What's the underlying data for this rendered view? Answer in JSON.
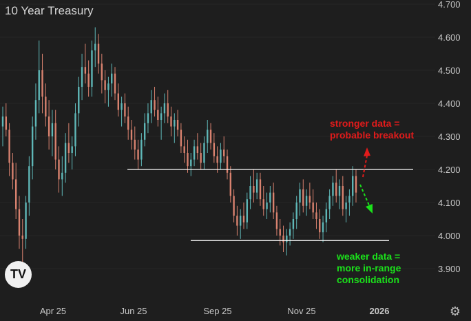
{
  "header": {
    "title": "10 Year Treasury",
    "logo_text": "TV",
    "settings_icon": "gear-icon"
  },
  "annotations": {
    "up_line1": "stronger data =",
    "up_line2": "probable breakout",
    "down_line1": "weaker data =",
    "down_line2": "more in-range",
    "down_line3": "consolidation"
  },
  "colors": {
    "background": "#1e1e1e",
    "up_candle": "#5fb7b7",
    "down_candle": "#d9826f",
    "level_line": "#ffffff",
    "breakout_arrow": "#e11b1b",
    "breakdown_arrow": "#1be11b",
    "axis_text": "#c8c8c8"
  },
  "chart_data": {
    "type": "candlestick",
    "title": "10 Year Treasury",
    "ylim": [
      3.85,
      4.72
    ],
    "y_ticks": [
      "4.700",
      "4.600",
      "4.500",
      "4.400",
      "4.300",
      "4.200",
      "4.100",
      "4.000",
      "3.900"
    ],
    "y_tick_values": [
      4.7,
      4.6,
      4.5,
      4.4,
      4.3,
      4.2,
      4.1,
      4.0,
      3.9
    ],
    "x_ticks": [
      "Apr 25",
      "Jun 25",
      "Sep 25",
      "Nov 25",
      "2026"
    ],
    "resistance_level": 4.2,
    "support_level": 3.985,
    "series": [
      {
        "values": [
          [
            4.33,
            4.39,
            4.27,
            4.36
          ],
          [
            4.36,
            4.4,
            4.3,
            4.32
          ],
          [
            4.32,
            4.34,
            4.18,
            4.22
          ],
          [
            4.22,
            4.25,
            4.14,
            4.17
          ],
          [
            4.17,
            4.22,
            4.05,
            4.08
          ],
          [
            4.08,
            4.12,
            3.96,
            4.0
          ],
          [
            4.0,
            4.05,
            3.92,
            3.99
          ],
          [
            3.99,
            4.12,
            3.96,
            4.1
          ],
          [
            4.1,
            4.24,
            4.06,
            4.21
          ],
          [
            4.21,
            4.36,
            4.17,
            4.33
          ],
          [
            4.33,
            4.46,
            4.29,
            4.41
          ],
          [
            4.41,
            4.59,
            4.37,
            4.5
          ],
          [
            4.5,
            4.55,
            4.37,
            4.42
          ],
          [
            4.42,
            4.46,
            4.33,
            4.36
          ],
          [
            4.36,
            4.41,
            4.26,
            4.3
          ],
          [
            4.3,
            4.38,
            4.24,
            4.34
          ],
          [
            4.34,
            4.38,
            4.2,
            4.23
          ],
          [
            4.23,
            4.27,
            4.13,
            4.17
          ],
          [
            4.17,
            4.24,
            4.12,
            4.19
          ],
          [
            4.19,
            4.31,
            4.16,
            4.28
          ],
          [
            4.28,
            4.34,
            4.22,
            4.25
          ],
          [
            4.25,
            4.3,
            4.2,
            4.27
          ],
          [
            4.27,
            4.4,
            4.24,
            4.37
          ],
          [
            4.37,
            4.48,
            4.33,
            4.45
          ],
          [
            4.45,
            4.55,
            4.41,
            4.51
          ],
          [
            4.51,
            4.58,
            4.46,
            4.49
          ],
          [
            4.49,
            4.53,
            4.42,
            4.45
          ],
          [
            4.45,
            4.59,
            4.42,
            4.56
          ],
          [
            4.56,
            4.63,
            4.51,
            4.58
          ],
          [
            4.58,
            4.61,
            4.49,
            4.52
          ],
          [
            4.52,
            4.55,
            4.43,
            4.47
          ],
          [
            4.47,
            4.5,
            4.4,
            4.44
          ],
          [
            4.44,
            4.48,
            4.39,
            4.46
          ],
          [
            4.46,
            4.52,
            4.42,
            4.49
          ],
          [
            4.49,
            4.51,
            4.41,
            4.43
          ],
          [
            4.43,
            4.46,
            4.36,
            4.38
          ],
          [
            4.38,
            4.42,
            4.33,
            4.4
          ],
          [
            4.4,
            4.43,
            4.34,
            4.36
          ],
          [
            4.36,
            4.39,
            4.29,
            4.32
          ],
          [
            4.32,
            4.35,
            4.26,
            4.29
          ],
          [
            4.29,
            4.33,
            4.23,
            4.26
          ],
          [
            4.26,
            4.29,
            4.2,
            4.23
          ],
          [
            4.23,
            4.31,
            4.21,
            4.29
          ],
          [
            4.29,
            4.37,
            4.27,
            4.34
          ],
          [
            4.34,
            4.4,
            4.31,
            4.37
          ],
          [
            4.37,
            4.44,
            4.34,
            4.41
          ],
          [
            4.41,
            4.45,
            4.36,
            4.38
          ],
          [
            4.38,
            4.42,
            4.33,
            4.35
          ],
          [
            4.35,
            4.39,
            4.29,
            4.37
          ],
          [
            4.37,
            4.43,
            4.34,
            4.4
          ],
          [
            4.4,
            4.44,
            4.34,
            4.36
          ],
          [
            4.36,
            4.39,
            4.3,
            4.33
          ],
          [
            4.33,
            4.37,
            4.28,
            4.35
          ],
          [
            4.35,
            4.38,
            4.3,
            4.32
          ],
          [
            4.32,
            4.34,
            4.25,
            4.27
          ],
          [
            4.27,
            4.3,
            4.22,
            4.25
          ],
          [
            4.25,
            4.29,
            4.19,
            4.21
          ],
          [
            4.21,
            4.25,
            4.18,
            4.23
          ],
          [
            4.23,
            4.29,
            4.21,
            4.27
          ],
          [
            4.27,
            4.31,
            4.23,
            4.25
          ],
          [
            4.25,
            4.28,
            4.2,
            4.22
          ],
          [
            4.22,
            4.3,
            4.2,
            4.28
          ],
          [
            4.28,
            4.35,
            4.25,
            4.32
          ],
          [
            4.32,
            4.34,
            4.26,
            4.28
          ],
          [
            4.28,
            4.31,
            4.22,
            4.24
          ],
          [
            4.24,
            4.27,
            4.19,
            4.22
          ],
          [
            4.22,
            4.28,
            4.2,
            4.26
          ],
          [
            4.26,
            4.3,
            4.22,
            4.24
          ],
          [
            4.24,
            4.26,
            4.17,
            4.19
          ],
          [
            4.19,
            4.21,
            4.1,
            4.12
          ],
          [
            4.12,
            4.14,
            4.04,
            4.06
          ],
          [
            4.06,
            4.09,
            4.0,
            4.03
          ],
          [
            4.03,
            4.08,
            3.99,
            4.06
          ],
          [
            4.06,
            4.1,
            4.02,
            4.04
          ],
          [
            4.04,
            4.13,
            4.02,
            4.11
          ],
          [
            4.11,
            4.18,
            4.08,
            4.15
          ],
          [
            4.15,
            4.2,
            4.1,
            4.13
          ],
          [
            4.13,
            4.19,
            4.11,
            4.17
          ],
          [
            4.17,
            4.19,
            4.09,
            4.11
          ],
          [
            4.11,
            4.15,
            4.06,
            4.08
          ],
          [
            4.08,
            4.13,
            4.05,
            4.1
          ],
          [
            4.1,
            4.15,
            4.07,
            4.13
          ],
          [
            4.13,
            4.16,
            4.05,
            4.07
          ],
          [
            4.07,
            4.09,
            4.0,
            4.02
          ],
          [
            4.02,
            4.05,
            3.97,
            4.0
          ],
          [
            4.0,
            4.03,
            3.95,
            3.98
          ],
          [
            3.98,
            4.02,
            3.94,
            4.0
          ],
          [
            4.0,
            4.04,
            3.97,
            4.02
          ],
          [
            4.02,
            4.07,
            3.99,
            4.05
          ],
          [
            4.05,
            4.12,
            4.02,
            4.1
          ],
          [
            4.1,
            4.16,
            4.06,
            4.14
          ],
          [
            4.14,
            4.17,
            4.07,
            4.09
          ],
          [
            4.09,
            4.14,
            4.06,
            4.12
          ],
          [
            4.12,
            4.16,
            4.08,
            4.1
          ],
          [
            4.1,
            4.14,
            4.05,
            4.07
          ],
          [
            4.07,
            4.1,
            4.02,
            4.05
          ],
          [
            4.05,
            4.08,
            3.99,
            4.01
          ],
          [
            4.01,
            4.06,
            3.98,
            4.04
          ],
          [
            4.04,
            4.1,
            4.01,
            4.08
          ],
          [
            4.08,
            4.14,
            4.05,
            4.12
          ],
          [
            4.12,
            4.18,
            4.09,
            4.16
          ],
          [
            4.16,
            4.2,
            4.1,
            4.12
          ],
          [
            4.12,
            4.17,
            4.08,
            4.15
          ],
          [
            4.15,
            4.18,
            4.06,
            4.08
          ],
          [
            4.08,
            4.12,
            4.04,
            4.1
          ],
          [
            4.1,
            4.14,
            4.06,
            4.12
          ],
          [
            4.12,
            4.21,
            4.09,
            4.18
          ],
          [
            4.18,
            4.2,
            4.1,
            4.13
          ]
        ]
      }
    ]
  }
}
